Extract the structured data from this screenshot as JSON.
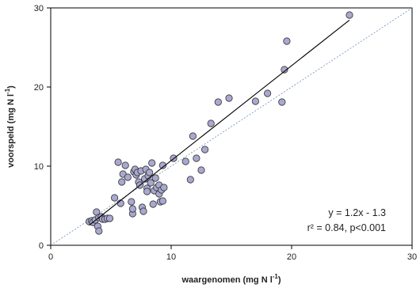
{
  "chart_data": {
    "type": "scatter",
    "xlabel": "waargenomen (mg N l",
    "xlabel_sup": "-1",
    "xlabel_end": ")",
    "ylabel": "voorspeld (mg N l",
    "ylabel_sup": "-1",
    "ylabel_end": ")",
    "xlim": [
      0,
      30
    ],
    "ylim": [
      0,
      30
    ],
    "xticks": [
      "0",
      "10",
      "20",
      "30"
    ],
    "yticks": [
      "0",
      "10",
      "20",
      "30"
    ],
    "grid": false,
    "colors": {
      "marker_fill": "#a8a8d0",
      "marker_edge": "#333333",
      "fit_line": "#000000",
      "identity_line": "#6b8fb5"
    },
    "fit_line": {
      "slope": 1.2,
      "intercept": -1.3,
      "x_range": [
        3.2,
        24.8
      ]
    },
    "identity_line": {
      "x_range": [
        0,
        30
      ]
    },
    "annotations": [
      "y = 1.2x - 1.3",
      "r² = 0.84, p<0.001"
    ],
    "points": [
      [
        3.2,
        3.0
      ],
      [
        3.4,
        3.1
      ],
      [
        3.5,
        2.9
      ],
      [
        3.7,
        3.2
      ],
      [
        3.8,
        4.2
      ],
      [
        3.9,
        2.4
      ],
      [
        4.0,
        1.8
      ],
      [
        4.0,
        3.5
      ],
      [
        4.2,
        3.6
      ],
      [
        4.3,
        3.3
      ],
      [
        4.5,
        3.3
      ],
      [
        4.7,
        3.4
      ],
      [
        4.9,
        3.4
      ],
      [
        5.3,
        6.0
      ],
      [
        5.6,
        10.5
      ],
      [
        5.8,
        5.3
      ],
      [
        5.9,
        8.0
      ],
      [
        6.0,
        9.0
      ],
      [
        6.2,
        10.1
      ],
      [
        6.4,
        8.6
      ],
      [
        6.7,
        5.5
      ],
      [
        6.8,
        4.0
      ],
      [
        6.8,
        4.6
      ],
      [
        6.9,
        9.3
      ],
      [
        7.0,
        9.6
      ],
      [
        7.1,
        8.9
      ],
      [
        7.2,
        9.2
      ],
      [
        7.3,
        8.0
      ],
      [
        7.4,
        7.6
      ],
      [
        7.5,
        9.4
      ],
      [
        7.6,
        4.8
      ],
      [
        7.7,
        4.3
      ],
      [
        7.8,
        8.4
      ],
      [
        7.9,
        9.6
      ],
      [
        8.0,
        7.2
      ],
      [
        8.0,
        6.8
      ],
      [
        8.1,
        8.8
      ],
      [
        8.2,
        9.2
      ],
      [
        8.3,
        7.9
      ],
      [
        8.4,
        10.4
      ],
      [
        8.5,
        5.2
      ],
      [
        8.6,
        6.9
      ],
      [
        8.7,
        8.5
      ],
      [
        8.8,
        7.3
      ],
      [
        9.0,
        6.5
      ],
      [
        9.0,
        7.6
      ],
      [
        9.1,
        5.5
      ],
      [
        9.2,
        7.0
      ],
      [
        9.3,
        5.6
      ],
      [
        9.4,
        7.3
      ],
      [
        9.3,
        10.1
      ],
      [
        10.2,
        11.0
      ],
      [
        11.2,
        10.6
      ],
      [
        11.6,
        8.3
      ],
      [
        11.8,
        13.8
      ],
      [
        12.1,
        11.0
      ],
      [
        12.5,
        9.5
      ],
      [
        12.8,
        12.1
      ],
      [
        13.3,
        15.4
      ],
      [
        13.9,
        18.1
      ],
      [
        14.8,
        18.6
      ],
      [
        17.0,
        18.2
      ],
      [
        18.0,
        19.2
      ],
      [
        19.2,
        18.1
      ],
      [
        19.4,
        22.2
      ],
      [
        19.6,
        25.8
      ],
      [
        24.8,
        29.1
      ]
    ]
  }
}
